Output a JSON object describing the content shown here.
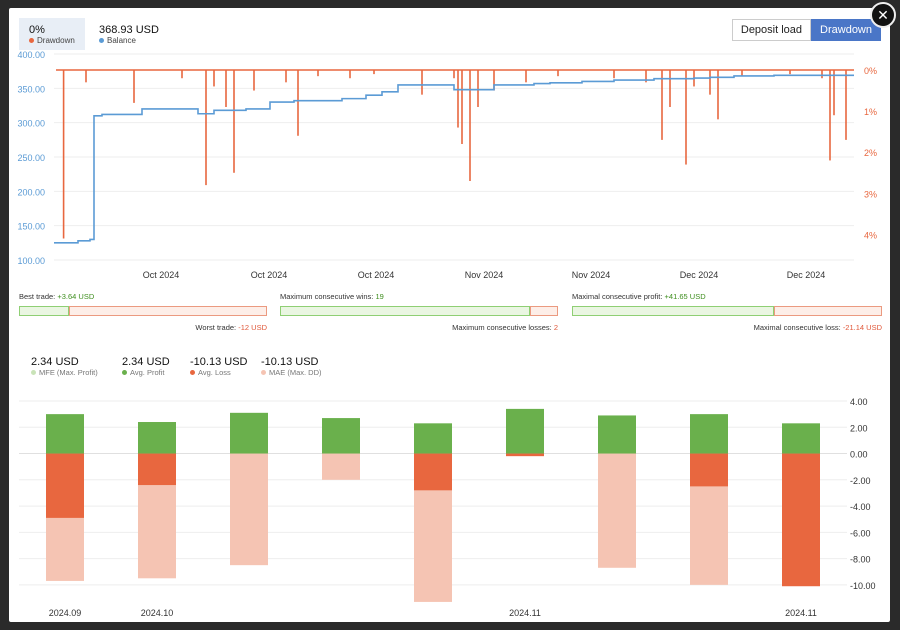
{
  "top": {
    "drawdown_value": "0%",
    "drawdown_label": "Drawdown",
    "balance_value": "368.93 USD",
    "balance_label": "Balance",
    "tabs": [
      "Deposit load",
      "Drawdown"
    ],
    "active_tab": "Drawdown"
  },
  "stats": {
    "best_trade_label": "Best trade:",
    "best_trade_value": "+3.64 USD",
    "worst_trade_label": "Worst trade:",
    "worst_trade_value": "-12 USD",
    "max_consec_wins_label": "Maximum consecutive wins:",
    "max_consec_wins_value": "19",
    "max_consec_losses_label": "Maximum consecutive losses:",
    "max_consec_losses_value": "2",
    "max_consec_profit_label": "Maximal consecutive profit:",
    "max_consec_profit_value": "+41.65 USD",
    "max_consec_loss_label": "Maximal consecutive loss:",
    "max_consec_loss_value": "-21.14 USD",
    "ratios": {
      "best_trade": 0.2,
      "max_consec_wins": 0.9,
      "max_consec_profit": 0.65
    }
  },
  "bottom_legend": [
    {
      "value": "2.34 USD",
      "label": "MFE (Max. Profit)",
      "color": "#c9e3b8"
    },
    {
      "value": "2.34 USD",
      "label": "Avg. Profit",
      "color": "#6ab04c"
    },
    {
      "value": "-10.13 USD",
      "label": "Avg. Loss",
      "color": "#e8673f"
    },
    {
      "value": "-10.13 USD",
      "label": "MAE (Max. DD)",
      "color": "#f5c4b3"
    }
  ],
  "colors": {
    "balance": "#5b9bd5",
    "drawdown": "#e8673f",
    "profit": "#6ab04c",
    "loss": "#e8673f",
    "mae": "#f5c4b3"
  },
  "chart_data": [
    {
      "type": "line",
      "title": "",
      "x_ticks": [
        "Oct 2024",
        "Oct 2024",
        "Oct 2024",
        "Nov 2024",
        "Nov 2024",
        "Dec 2024",
        "Dec 2024"
      ],
      "y_ticks_left": [
        "400.00",
        "350.00",
        "300.00",
        "250.00",
        "200.00",
        "150.00",
        "100.00"
      ],
      "y_ticks_right": [
        "0%",
        "1%",
        "2%",
        "3%",
        "4%"
      ],
      "ylim_left": [
        100,
        400
      ],
      "ylim_right": [
        0,
        4.5
      ],
      "series": [
        {
          "name": "Balance",
          "axis": "left",
          "x": [
            0,
            0.03,
            0.045,
            0.05,
            0.06,
            0.11,
            0.18,
            0.2,
            0.24,
            0.27,
            0.3,
            0.36,
            0.39,
            0.41,
            0.43,
            0.5,
            0.55,
            0.6,
            0.62,
            0.66,
            0.7,
            0.75,
            0.8,
            0.82,
            0.85,
            0.9,
            1.0
          ],
          "y": [
            125,
            128,
            130,
            310,
            312,
            320,
            313,
            318,
            320,
            330,
            332,
            335,
            340,
            345,
            355,
            348,
            355,
            357,
            358,
            360,
            362,
            364,
            365,
            366,
            368,
            369,
            369
          ]
        },
        {
          "name": "Drawdown",
          "axis": "right",
          "spikes": [
            [
              0.012,
              4.1
            ],
            [
              0.04,
              0.3
            ],
            [
              0.1,
              0.8
            ],
            [
              0.16,
              0.2
            ],
            [
              0.19,
              2.8
            ],
            [
              0.2,
              0.4
            ],
            [
              0.215,
              0.9
            ],
            [
              0.225,
              2.5
            ],
            [
              0.25,
              0.5
            ],
            [
              0.29,
              0.3
            ],
            [
              0.305,
              1.6
            ],
            [
              0.33,
              0.15
            ],
            [
              0.37,
              0.2
            ],
            [
              0.4,
              0.1
            ],
            [
              0.46,
              0.6
            ],
            [
              0.5,
              0.2
            ],
            [
              0.505,
              1.4
            ],
            [
              0.51,
              1.8
            ],
            [
              0.52,
              2.7
            ],
            [
              0.53,
              0.9
            ],
            [
              0.55,
              0.5
            ],
            [
              0.59,
              0.3
            ],
            [
              0.63,
              0.15
            ],
            [
              0.7,
              0.2
            ],
            [
              0.74,
              0.3
            ],
            [
              0.76,
              1.7
            ],
            [
              0.77,
              0.9
            ],
            [
              0.79,
              2.3
            ],
            [
              0.8,
              0.4
            ],
            [
              0.82,
              0.6
            ],
            [
              0.83,
              1.2
            ],
            [
              0.86,
              0.15
            ],
            [
              0.92,
              0.1
            ],
            [
              0.96,
              0.2
            ],
            [
              0.97,
              2.2
            ],
            [
              0.975,
              1.1
            ],
            [
              0.99,
              1.7
            ]
          ]
        }
      ]
    },
    {
      "type": "bar",
      "title": "",
      "categories": [
        "2024.09",
        "2024.10",
        "",
        "",
        "",
        "2024.11",
        "",
        "",
        "2024.11"
      ],
      "y_ticks": [
        "4.00",
        "2.00",
        "0.00",
        "-2.00",
        "-4.00",
        "-6.00",
        "-8.00",
        "-10.00"
      ],
      "ylim": [
        -11,
        4
      ],
      "series": [
        {
          "name": "Avg. Profit",
          "values": [
            3.0,
            2.4,
            3.1,
            2.7,
            2.3,
            3.4,
            2.9,
            3.0,
            2.3
          ]
        },
        {
          "name": "Avg. Loss",
          "values": [
            -4.9,
            -2.4,
            0,
            0,
            -2.8,
            -0.2,
            0,
            -2.5,
            -10.1
          ]
        },
        {
          "name": "MAE (Max. DD)",
          "values": [
            -9.7,
            -9.5,
            -8.5,
            -2.0,
            -11.3,
            0,
            -8.7,
            -10.0,
            -10.1
          ]
        }
      ]
    }
  ]
}
